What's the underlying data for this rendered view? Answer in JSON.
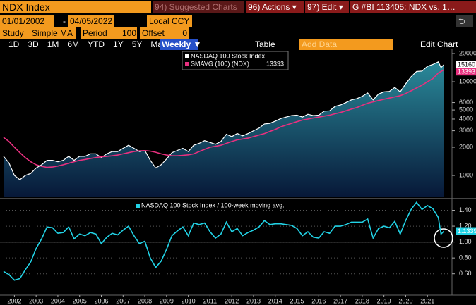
{
  "toolbar": {
    "security": "NDX Index",
    "suggested": "94) Suggested Charts",
    "actions": "96) Actions ▾",
    "edit": "97) Edit ▾",
    "graph": "G #BI 113405: NDX vs. 1…",
    "start_date": "01/01/2002",
    "dash": "-",
    "end_date": "04/05/2022",
    "currency": "Local CCY",
    "study_label": "Study",
    "study": "Simple MA",
    "period_label": "Period",
    "period": "100",
    "offset_label": "Offset",
    "offset": "0",
    "ranges": [
      "1D",
      "3D",
      "1M",
      "6M",
      "YTD",
      "1Y",
      "5Y",
      "Max"
    ],
    "frequency": "Weekly ▼",
    "table": "Table",
    "add_data": "Add Data",
    "edit_chart": "Edit Chart"
  },
  "chart_data": [
    {
      "type": "line",
      "log_y": true,
      "area": true,
      "grid": false,
      "x": [
        2002,
        2002.25,
        2002.5,
        2002.75,
        2003,
        2003.25,
        2003.5,
        2003.75,
        2004,
        2004.25,
        2004.5,
        2004.75,
        2005,
        2005.25,
        2005.5,
        2005.75,
        2006,
        2006.25,
        2006.5,
        2006.75,
        2007,
        2007.25,
        2007.5,
        2007.75,
        2008,
        2008.25,
        2008.5,
        2008.75,
        2009,
        2009.25,
        2009.5,
        2009.75,
        2010,
        2010.25,
        2010.5,
        2010.75,
        2011,
        2011.25,
        2011.5,
        2011.75,
        2012,
        2012.25,
        2012.5,
        2012.75,
        2013,
        2013.25,
        2013.5,
        2013.75,
        2014,
        2014.25,
        2014.5,
        2014.75,
        2015,
        2015.25,
        2015.5,
        2015.75,
        2016,
        2016.25,
        2016.5,
        2016.75,
        2017,
        2017.25,
        2017.5,
        2017.75,
        2018,
        2018.25,
        2018.5,
        2018.75,
        2019,
        2019.25,
        2019.5,
        2019.75,
        2020,
        2020.25,
        2020.5,
        2020.75,
        2021,
        2021.25,
        2021.5,
        2021.75,
        2022,
        2022.125,
        2022.25
      ],
      "xlim": [
        2002,
        2022.5
      ],
      "ylim": [
        585,
        22200
      ],
      "yticks": [
        1000,
        2000,
        3000,
        4000,
        5000,
        6000,
        10000,
        20000
      ],
      "series": [
        {
          "name": "NASDAQ 100 Stock Index",
          "color": "#ffffff",
          "values": [
            1600,
            1360,
            1000,
            900,
            1000,
            1050,
            1200,
            1300,
            1450,
            1450,
            1400,
            1450,
            1600,
            1450,
            1600,
            1600,
            1700,
            1700,
            1550,
            1700,
            1800,
            1800,
            1950,
            2100,
            1950,
            1800,
            1850,
            1450,
            1200,
            1300,
            1500,
            1750,
            1850,
            1950,
            1800,
            2100,
            2200,
            2350,
            2250,
            2150,
            2300,
            2750,
            2600,
            2800,
            2650,
            2800,
            3000,
            3200,
            3550,
            3600,
            3800,
            4050,
            4200,
            4350,
            4400,
            4200,
            4500,
            4350,
            4400,
            4850,
            4900,
            5450,
            5650,
            6000,
            6400,
            6600,
            7000,
            7600,
            6400,
            7400,
            7800,
            7900,
            8700,
            7800,
            9500,
            11300,
            12900,
            13000,
            14600,
            15300,
            16300,
            14200,
            15160
          ]
        },
        {
          "name": "SMAVG (100) (NDX)",
          "color": "#e8307f",
          "values": [
            2550,
            2300,
            2000,
            1750,
            1550,
            1400,
            1300,
            1250,
            1220,
            1230,
            1260,
            1300,
            1350,
            1400,
            1450,
            1480,
            1520,
            1550,
            1580,
            1600,
            1620,
            1650,
            1700,
            1750,
            1800,
            1830,
            1840,
            1820,
            1770,
            1700,
            1650,
            1620,
            1620,
            1640,
            1660,
            1700,
            1800,
            1900,
            2000,
            2050,
            2100,
            2200,
            2300,
            2400,
            2450,
            2500,
            2600,
            2700,
            2800,
            2950,
            3100,
            3300,
            3450,
            3600,
            3750,
            3900,
            4000,
            4100,
            4200,
            4300,
            4400,
            4550,
            4700,
            4900,
            5100,
            5300,
            5600,
            5900,
            6100,
            6300,
            6500,
            6700,
            6900,
            7100,
            7500,
            8000,
            8600,
            9200,
            10000,
            10800,
            12400,
            12900,
            13393
          ]
        }
      ]
    },
    {
      "type": "line",
      "log_y": false,
      "area": false,
      "grid": true,
      "reference_line": 1,
      "x": [
        2002,
        2002.25,
        2002.5,
        2002.75,
        2003,
        2003.25,
        2003.5,
        2003.75,
        2004,
        2004.25,
        2004.5,
        2004.75,
        2005,
        2005.25,
        2005.5,
        2005.75,
        2006,
        2006.25,
        2006.5,
        2006.75,
        2007,
        2007.25,
        2007.5,
        2007.75,
        2008,
        2008.25,
        2008.5,
        2008.75,
        2009,
        2009.25,
        2009.5,
        2009.75,
        2010,
        2010.25,
        2010.5,
        2010.75,
        2011,
        2011.25,
        2011.5,
        2011.75,
        2012,
        2012.25,
        2012.5,
        2012.75,
        2013,
        2013.25,
        2013.5,
        2013.75,
        2014,
        2014.25,
        2014.5,
        2014.75,
        2015,
        2015.25,
        2015.5,
        2015.75,
        2016,
        2016.25,
        2016.5,
        2016.75,
        2017,
        2017.25,
        2017.5,
        2017.75,
        2018,
        2018.25,
        2018.5,
        2018.75,
        2019,
        2019.25,
        2019.5,
        2019.75,
        2020,
        2020.25,
        2020.5,
        2020.75,
        2021,
        2021.25,
        2021.5,
        2021.75,
        2022,
        2022.125,
        2022.25
      ],
      "xlim": [
        2002,
        2022.5
      ],
      "ylim": [
        0.34,
        1.52
      ],
      "yticks": [
        {
          "value": 0.6,
          "label": "0.60"
        },
        {
          "value": 0.8,
          "label": "0.80"
        },
        {
          "value": 1,
          "label": "1.00"
        },
        {
          "value": 1.2,
          "label": "1.20"
        },
        {
          "value": 1.4,
          "label": "1.40"
        }
      ],
      "xticks": [
        {
          "value": 2002.5,
          "label": "2002"
        },
        {
          "value": 2003.5,
          "label": "2003"
        },
        {
          "value": 2004.5,
          "label": "2004"
        },
        {
          "value": 2005.5,
          "label": "2005"
        },
        {
          "value": 2006.5,
          "label": "2006"
        },
        {
          "value": 2007.5,
          "label": "2007"
        },
        {
          "value": 2008.5,
          "label": "2008"
        },
        {
          "value": 2009.5,
          "label": "2009"
        },
        {
          "value": 2010.5,
          "label": "2010"
        },
        {
          "value": 2011.5,
          "label": "2011"
        },
        {
          "value": 2012.5,
          "label": "2012"
        },
        {
          "value": 2013.5,
          "label": "2013"
        },
        {
          "value": 2014.5,
          "label": "2014"
        },
        {
          "value": 2015.5,
          "label": "2015"
        },
        {
          "value": 2016.5,
          "label": "2016"
        },
        {
          "value": 2017.5,
          "label": "2017"
        },
        {
          "value": 2018.5,
          "label": "2018"
        },
        {
          "value": 2019.5,
          "label": "2019"
        },
        {
          "value": 2020.5,
          "label": "2020"
        },
        {
          "value": 2021.5,
          "label": "2021"
        }
      ],
      "series": [
        {
          "name": "NASDAQ 100 Stock Index / 100-week moving avg.",
          "color": "#22d3e6",
          "values": [
            0.63,
            0.59,
            0.52,
            0.54,
            0.65,
            0.75,
            0.92,
            1.04,
            1.19,
            1.18,
            1.11,
            1.12,
            1.19,
            1.04,
            1.1,
            1.08,
            1.12,
            1.1,
            0.98,
            1.06,
            1.11,
            1.09,
            1.15,
            1.2,
            1.08,
            0.98,
            1.01,
            0.8,
            0.68,
            0.76,
            0.91,
            1.08,
            1.14,
            1.19,
            1.08,
            1.24,
            1.22,
            1.24,
            1.13,
            1.05,
            1.1,
            1.25,
            1.13,
            1.17,
            1.08,
            1.12,
            1.15,
            1.19,
            1.27,
            1.22,
            1.23,
            1.23,
            1.22,
            1.21,
            1.17,
            1.08,
            1.13,
            1.06,
            1.05,
            1.13,
            1.11,
            1.2,
            1.2,
            1.22,
            1.25,
            1.25,
            1.25,
            1.29,
            1.05,
            1.17,
            1.2,
            1.18,
            1.26,
            1.1,
            1.27,
            1.41,
            1.5,
            1.41,
            1.46,
            1.42,
            1.31,
            1.1,
            1.1339
          ]
        }
      ]
    }
  ]
}
